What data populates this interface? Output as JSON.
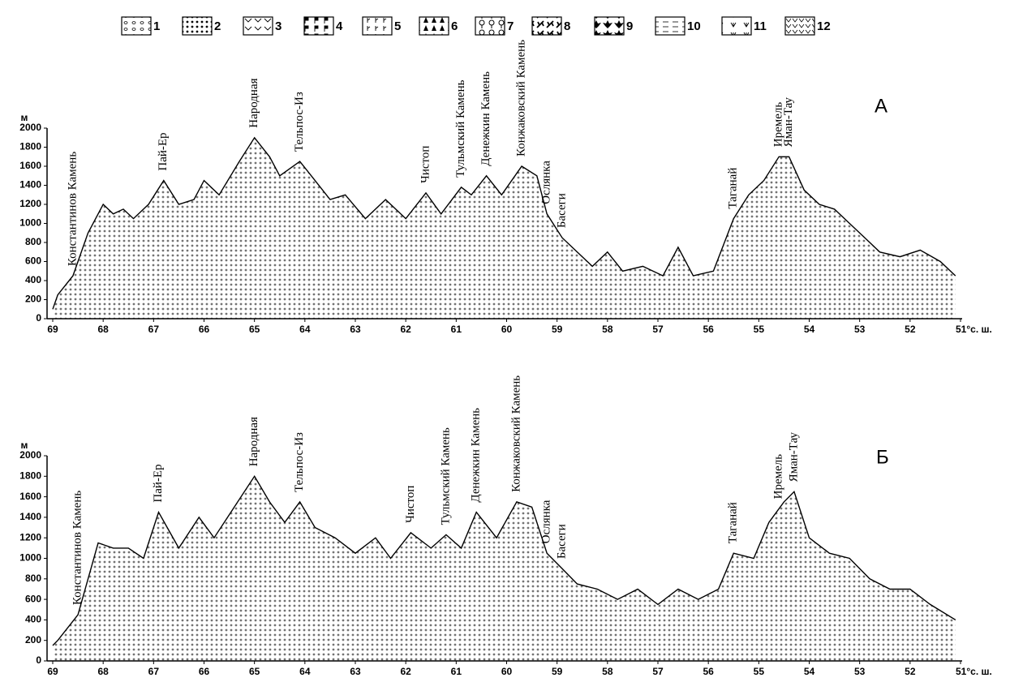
{
  "legend": [
    "1",
    "2",
    "3",
    "4",
    "5",
    "6",
    "7",
    "8",
    "9",
    "10",
    "11",
    "12"
  ],
  "chart_data": [
    {
      "type": "area",
      "label": "А",
      "y_label": "м",
      "x": [
        69.0,
        68.9,
        68.6,
        68.3,
        68.0,
        67.8,
        67.6,
        67.4,
        67.1,
        66.8,
        66.5,
        66.2,
        66.0,
        65.7,
        65.3,
        65.0,
        64.7,
        64.5,
        64.1,
        63.8,
        63.5,
        63.2,
        62.8,
        62.4,
        62.0,
        61.6,
        61.3,
        60.9,
        60.7,
        60.4,
        60.1,
        59.7,
        59.4,
        59.2,
        58.9,
        58.6,
        58.3,
        58.0,
        57.7,
        57.3,
        56.9,
        56.6,
        56.3,
        55.9,
        55.5,
        55.2,
        54.9,
        54.6,
        54.4,
        54.1,
        53.8,
        53.5,
        53.2,
        52.9,
        52.6,
        52.2,
        51.8,
        51.4,
        51.1
      ],
      "values": [
        100,
        250,
        450,
        900,
        1200,
        1100,
        1150,
        1050,
        1200,
        1450,
        1200,
        1250,
        1450,
        1300,
        1650,
        1900,
        1700,
        1500,
        1650,
        1450,
        1250,
        1300,
        1050,
        1250,
        1050,
        1320,
        1100,
        1380,
        1300,
        1500,
        1300,
        1600,
        1500,
        1100,
        850,
        700,
        550,
        700,
        500,
        550,
        450,
        750,
        450,
        500,
        1050,
        1300,
        1450,
        1700,
        1700,
        1350,
        1200,
        1150,
        1000,
        850,
        700,
        650,
        720,
        600,
        450
      ],
      "xlim": [
        69,
        51
      ],
      "ylim": [
        0,
        2000
      ],
      "xticks": [
        69,
        68,
        67,
        66,
        65,
        64,
        63,
        62,
        61,
        60,
        59,
        58,
        57,
        56,
        55,
        54,
        53,
        52,
        {
          "value": 51,
          "label": "51°с. ш."
        }
      ],
      "yticks": [
        0,
        200,
        400,
        600,
        800,
        1000,
        1200,
        1400,
        1600,
        1800,
        2000
      ],
      "annotations": [
        {
          "text": "Константинов Камень",
          "x": 68.6
        },
        {
          "text": "Пай-Ер",
          "x": 66.8
        },
        {
          "text": "Народная",
          "x": 65.0
        },
        {
          "text": "Тельпос-Из",
          "x": 64.1
        },
        {
          "text": "Чистоп",
          "x": 61.6
        },
        {
          "text": "Тульмский Камень",
          "x": 60.9
        },
        {
          "text": "Денежкин Камень",
          "x": 60.4
        },
        {
          "text": "Конжаковский Камень",
          "x": 59.7
        },
        {
          "text": "Ослянка",
          "x": 59.2
        },
        {
          "text": "Басеги",
          "x": 58.9
        },
        {
          "text": "Таганай",
          "x": 55.5
        },
        {
          "text": "Иремель",
          "x": 54.6
        },
        {
          "text": "Яман-Тау",
          "x": 54.4
        }
      ]
    },
    {
      "type": "area",
      "label": "Б",
      "y_label": "м",
      "x": [
        69.0,
        68.9,
        68.5,
        68.1,
        67.8,
        67.5,
        67.2,
        66.9,
        66.5,
        66.1,
        65.8,
        65.4,
        65.0,
        64.7,
        64.4,
        64.1,
        63.8,
        63.4,
        63.0,
        62.6,
        62.3,
        61.9,
        61.5,
        61.2,
        60.9,
        60.6,
        60.2,
        59.8,
        59.5,
        59.2,
        58.9,
        58.6,
        58.2,
        57.8,
        57.4,
        57.0,
        56.6,
        56.2,
        55.8,
        55.5,
        55.1,
        54.8,
        54.5,
        54.3,
        54.0,
        53.6,
        53.2,
        52.8,
        52.4,
        52.0,
        51.6,
        51.1
      ],
      "values": [
        150,
        200,
        450,
        1150,
        1100,
        1100,
        1000,
        1450,
        1100,
        1400,
        1200,
        1500,
        1800,
        1550,
        1350,
        1550,
        1300,
        1200,
        1050,
        1200,
        1000,
        1250,
        1100,
        1230,
        1100,
        1450,
        1200,
        1550,
        1500,
        1050,
        900,
        750,
        700,
        600,
        700,
        550,
        700,
        600,
        700,
        1050,
        1000,
        1350,
        1550,
        1650,
        1200,
        1050,
        1000,
        800,
        700,
        700,
        550,
        400
      ],
      "xlim": [
        69,
        51
      ],
      "ylim": [
        0,
        2000
      ],
      "xticks": [
        69,
        68,
        67,
        66,
        65,
        64,
        63,
        62,
        61,
        60,
        59,
        58,
        57,
        56,
        55,
        54,
        53,
        52,
        {
          "value": 51,
          "label": "51°с. ш."
        }
      ],
      "yticks": [
        0,
        200,
        400,
        600,
        800,
        1000,
        1200,
        1400,
        1600,
        1800,
        2000
      ],
      "annotations": [
        {
          "text": "Константинов Камень",
          "x": 68.5
        },
        {
          "text": "Пай-Ер",
          "x": 66.9
        },
        {
          "text": "Народная",
          "x": 65.0
        },
        {
          "text": "Тельпос-Из",
          "x": 64.1
        },
        {
          "text": "Чистоп",
          "x": 61.9
        },
        {
          "text": "Тульмский Камень",
          "x": 61.2
        },
        {
          "text": "Денежкин Камень",
          "x": 60.6
        },
        {
          "text": "Конжаковский Камень",
          "x": 59.8
        },
        {
          "text": "Ослянка",
          "x": 59.2
        },
        {
          "text": "Басеги",
          "x": 58.9
        },
        {
          "text": "Таганай",
          "x": 55.5
        },
        {
          "text": "Иремель",
          "x": 54.6
        },
        {
          "text": "Яман-Тау",
          "x": 54.3
        }
      ]
    }
  ]
}
